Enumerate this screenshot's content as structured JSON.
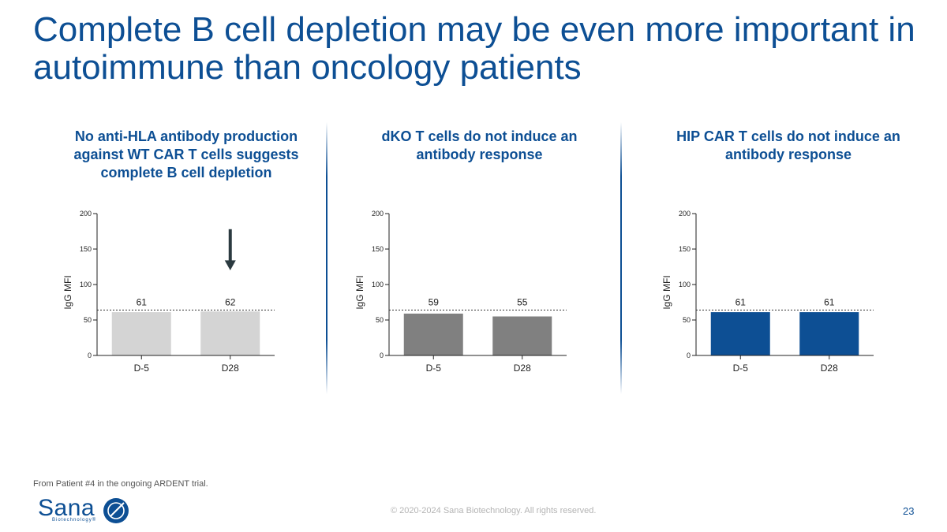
{
  "slide": {
    "title": "Complete B cell depletion may be even more important in autoimmune than oncology patients",
    "panels": [
      {
        "heading": "No anti-HLA antibody production against WT CAR T cells suggests complete B cell depletion"
      },
      {
        "heading": "dKO T cells do not induce an antibody response"
      },
      {
        "heading": "HIP CAR T cells do not induce an antibody response"
      }
    ],
    "footnote": "From Patient #4 in the ongoing ARDENT trial.",
    "copyright": "© 2020-2024 Sana Biotechnology. All rights reserved.",
    "page_number": "23",
    "logo": {
      "word": "Sana",
      "subtitle": "Biotechnology®"
    }
  },
  "chart_data": [
    {
      "type": "bar",
      "title": "No anti-HLA antibody production against WT CAR T cells suggests complete B cell depletion",
      "categories": [
        "D-5",
        "D28"
      ],
      "values": [
        61,
        62
      ],
      "data_labels": [
        "61",
        "62"
      ],
      "ylabel": "IgG MFI",
      "xlabel": "",
      "ylim": [
        0,
        200
      ],
      "yticks": [
        0,
        50,
        100,
        150,
        200
      ],
      "reference_line": 64,
      "bar_color": "#d4d4d4",
      "annotation": "down-arrow above D28",
      "arrow_color": "#2b3a40"
    },
    {
      "type": "bar",
      "title": "dKO T cells do not induce an antibody response",
      "categories": [
        "D-5",
        "D28"
      ],
      "values": [
        59,
        55
      ],
      "data_labels": [
        "59",
        "55"
      ],
      "ylabel": "IgG MFI",
      "xlabel": "",
      "ylim": [
        0,
        200
      ],
      "yticks": [
        0,
        50,
        100,
        150,
        200
      ],
      "reference_line": 64,
      "bar_color": "#808080"
    },
    {
      "type": "bar",
      "title": "HIP CAR T cells do not induce an antibody response",
      "categories": [
        "D-5",
        "D28"
      ],
      "values": [
        61,
        61
      ],
      "data_labels": [
        "61",
        "61"
      ],
      "ylabel": "IgG MFI",
      "xlabel": "",
      "ylim": [
        0,
        200
      ],
      "yticks": [
        0,
        50,
        100,
        150,
        200
      ],
      "reference_line": 64,
      "bar_color": "#0d4f94"
    }
  ]
}
